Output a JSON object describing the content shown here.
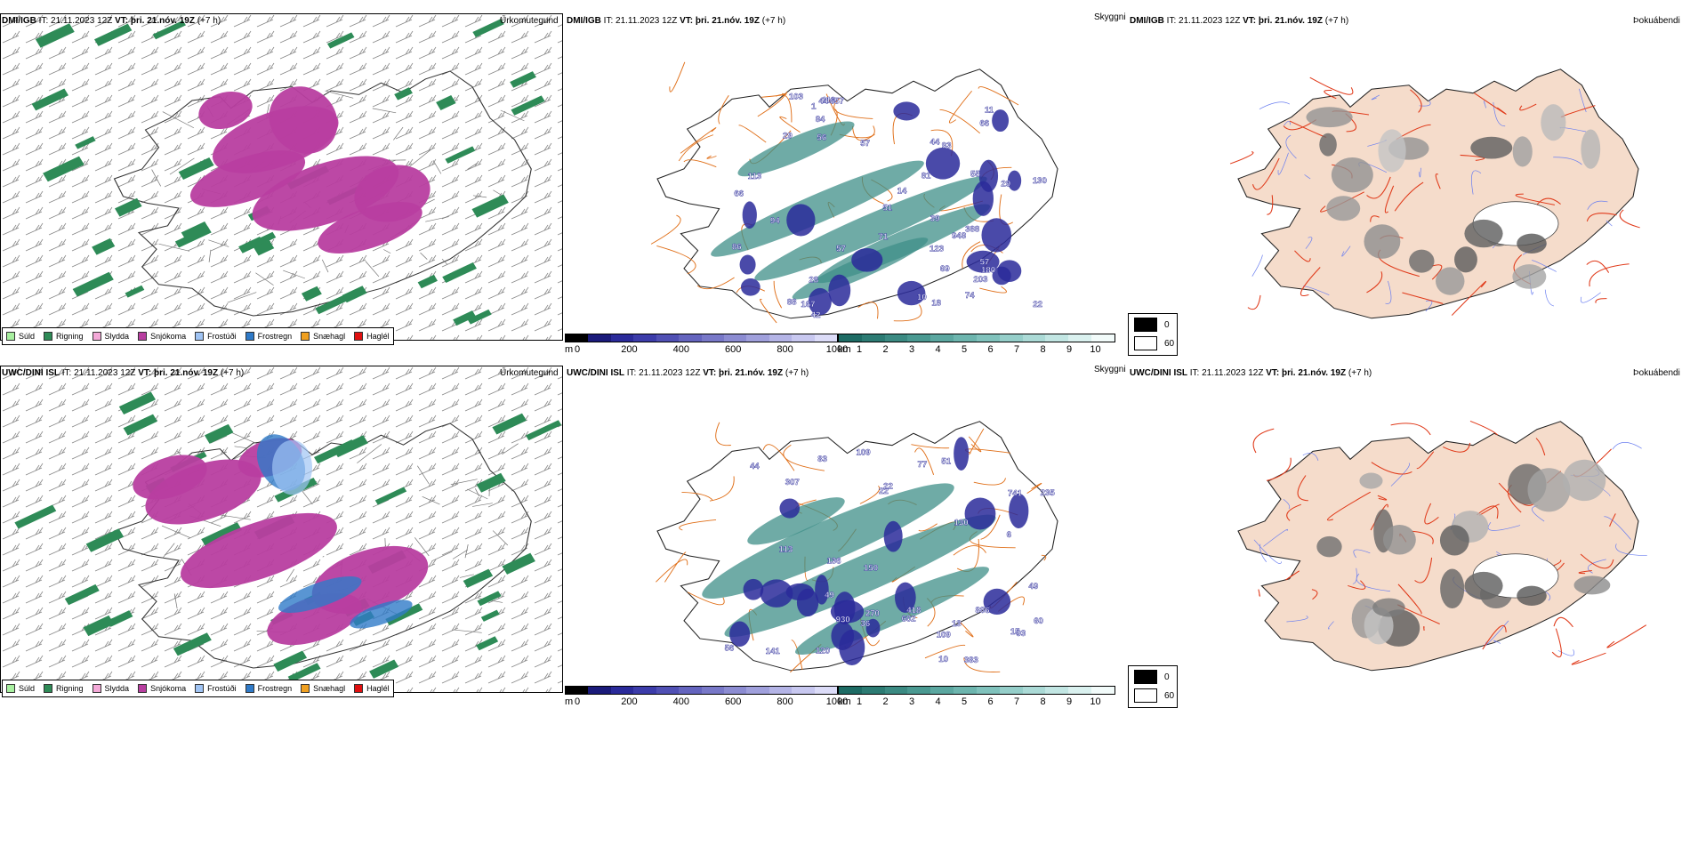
{
  "rows": [
    {
      "model": "DMI/IGB",
      "it_label": "IT:",
      "it_value": "21.11.2023 12Z",
      "vt_label": "VT:",
      "vt_value": "þri. 21.nóv. 19Z",
      "offset": "(+7 h)",
      "vis_labels": [
        "57",
        "74",
        "55",
        "69",
        "29",
        "123",
        "180",
        "42",
        "81",
        "94",
        "57",
        "86",
        "66",
        "388",
        "103",
        "57",
        "11",
        "71",
        "203",
        "29",
        "88",
        "119",
        "167",
        "93",
        "948",
        "1",
        "28",
        "657",
        "44",
        "84",
        "51",
        "44",
        "113",
        "14",
        "18",
        "22",
        "66",
        "39",
        "56",
        "10",
        "130"
      ]
    },
    {
      "model": "UWC/DINI ISL",
      "it_label": "IT:",
      "it_value": "21.11.2023 12Z",
      "vt_label": "VT:",
      "vt_value": "þri. 21.nóv. 19Z",
      "offset": "(+7 h)",
      "vis_labels": [
        "886",
        "93",
        "120",
        "150",
        "109",
        "15",
        "60",
        "418",
        "77",
        "13",
        "130",
        "383",
        "56",
        "307",
        "109",
        "113",
        "136",
        "51",
        "602",
        "270",
        "141",
        "22",
        "741",
        "930",
        "83",
        "235",
        "10",
        "49",
        "44",
        "36",
        "6",
        "22",
        "49"
      ]
    }
  ],
  "panel_titles": {
    "precip": "Úrkomutegund",
    "visibility": "Skyggni",
    "fog": "Þokuábendi"
  },
  "precip_legend": [
    {
      "label": "Súld",
      "color": "#a8f0a0"
    },
    {
      "label": "Rigning",
      "color": "#2e8b57"
    },
    {
      "label": "Slydda",
      "color": "#f4a9d8"
    },
    {
      "label": "Snjókoma",
      "color": "#b83ea0"
    },
    {
      "label": "Frostúði",
      "color": "#a0c4f4"
    },
    {
      "label": "Frostregn",
      "color": "#2f7ac8"
    },
    {
      "label": "Snæhagl",
      "color": "#f0a020"
    },
    {
      "label": "Haglél",
      "color": "#e01010"
    }
  ],
  "vis_m_scale": {
    "unit": "m",
    "ticks": [
      "0",
      "200",
      "400",
      "600",
      "800",
      "1000"
    ],
    "colors": [
      "#000000",
      "#1a1a7a",
      "#2a2a9a",
      "#3c3caa",
      "#5050b4",
      "#6464be",
      "#7878c8",
      "#8c8cd2",
      "#a0a0dc",
      "#b4b4e6",
      "#c8c8f0",
      "#dcdcf8"
    ]
  },
  "vis_km_scale": {
    "unit": "km",
    "ticks": [
      "1",
      "2",
      "3",
      "4",
      "5",
      "6",
      "7",
      "8",
      "9",
      "10"
    ],
    "colors": [
      "#1d6b64",
      "#2c7b73",
      "#3b8a82",
      "#4a9991",
      "#5ba7a0",
      "#6db5ae",
      "#80c2bc",
      "#95cec9",
      "#abdad6",
      "#c2e6e3",
      "#daf1ef",
      "#f2fbfa"
    ]
  },
  "fog_legend": [
    {
      "label": "0",
      "color": "#000000"
    },
    {
      "label": "60",
      "color": "#ffffff"
    }
  ],
  "colors": {
    "rain": "#2e8b57",
    "snow": "#b83ea0",
    "frz_rain": "#2f7ac8",
    "frz_drizzle": "#a0c4f4",
    "sleet": "#f4a9d8",
    "drizzle": "#a8f0a0",
    "road": "#e0701a",
    "road_red": "#e03a1a",
    "land_fog": "#f5dccb",
    "river": "#6b7ff0",
    "vis_blob": "#2a2a9a",
    "vis_teal": "#3f8f88"
  }
}
